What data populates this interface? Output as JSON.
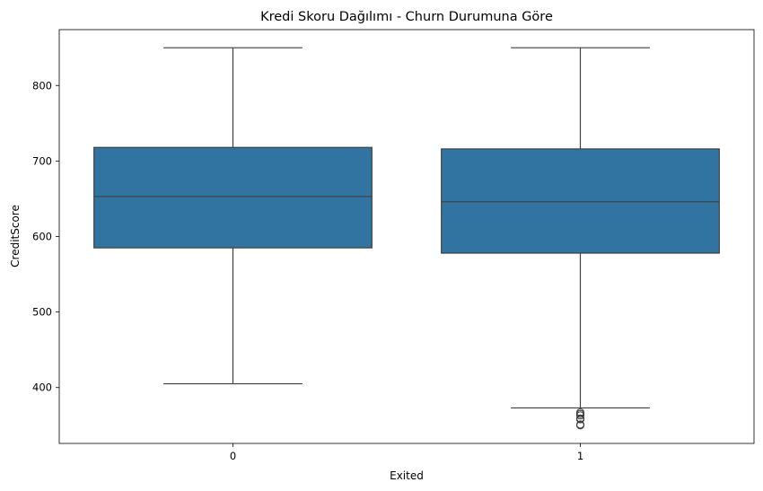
{
  "chart_data": {
    "type": "box",
    "title": "Kredi Skoru Dağılımı - Churn Durumuna Göre",
    "xlabel": "Exited",
    "ylabel": "CreditScore",
    "categories": [
      "0",
      "1"
    ],
    "ylim": [
      326,
      874
    ],
    "yticks": [
      400,
      500,
      600,
      700,
      800
    ],
    "box_color": "#3274a1",
    "line_color": "#3f3f3f",
    "boxes": [
      {
        "category": "0",
        "whisker_low": 405,
        "q1": 585,
        "median": 653,
        "q3": 718,
        "whisker_high": 850,
        "outliers": []
      },
      {
        "category": "1",
        "whisker_low": 373,
        "q1": 578,
        "median": 646,
        "q3": 716,
        "whisker_high": 850,
        "outliers": [
          350,
          351,
          358,
          359,
          363,
          365,
          367
        ]
      }
    ],
    "grid": false,
    "legend": "none"
  }
}
